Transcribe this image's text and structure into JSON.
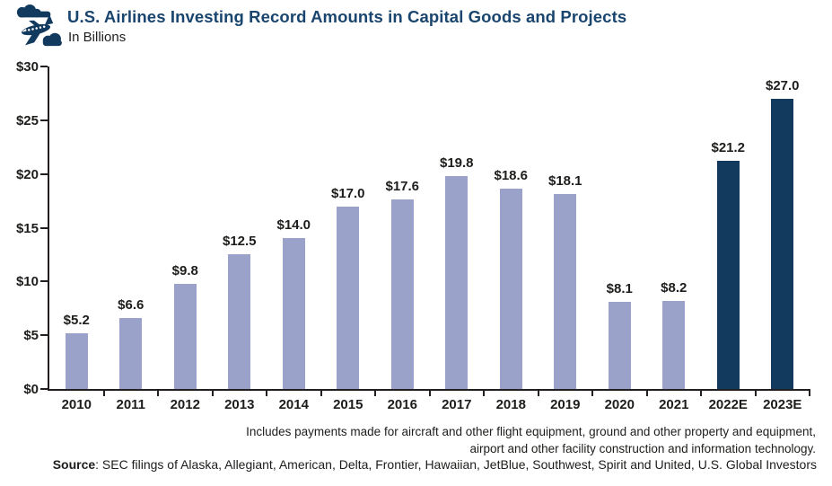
{
  "header": {
    "icon": "airplane-with-clouds-icon"
  },
  "chart_data": {
    "type": "bar",
    "title": "U.S. Airlines Investing Record Amounts in Capital Goods and Projects",
    "subtitle": "In Billions",
    "categories": [
      "2010",
      "2011",
      "2012",
      "2013",
      "2014",
      "2015",
      "2016",
      "2017",
      "2018",
      "2019",
      "2020",
      "2021",
      "2022E",
      "2023E"
    ],
    "values": [
      5.2,
      6.6,
      9.8,
      12.5,
      14.0,
      17.0,
      17.6,
      19.8,
      18.6,
      18.1,
      8.1,
      8.2,
      21.2,
      27.0
    ],
    "value_label_format": "$X.X",
    "estimate_categories": [
      "2022E",
      "2023E"
    ],
    "y_ticks": [
      "$0",
      "$5",
      "$10",
      "$15",
      "$20",
      "$25",
      "$30"
    ],
    "y_tick_step": 5,
    "ylim": [
      0,
      30
    ],
    "xlabel": "",
    "ylabel": "In Billions",
    "grid": "off",
    "legend": "none",
    "colors": {
      "actual": "#9aa2c9",
      "estimate": "#12395e",
      "title": "#1a456e",
      "axis": "#231f20",
      "text": "#1d1d1b"
    }
  },
  "footnote": {
    "line1": "Includes payments made for aircraft and other flight equipment, ground and other property and equipment,",
    "line2": "airport and other facility construction and information technology."
  },
  "source": {
    "label": "Source",
    "text": ": SEC filings of Alaska, Allegiant, American, Delta, Frontier, Hawaiian, JetBlue, Southwest, Spirit and United, U.S. Global Investors"
  }
}
